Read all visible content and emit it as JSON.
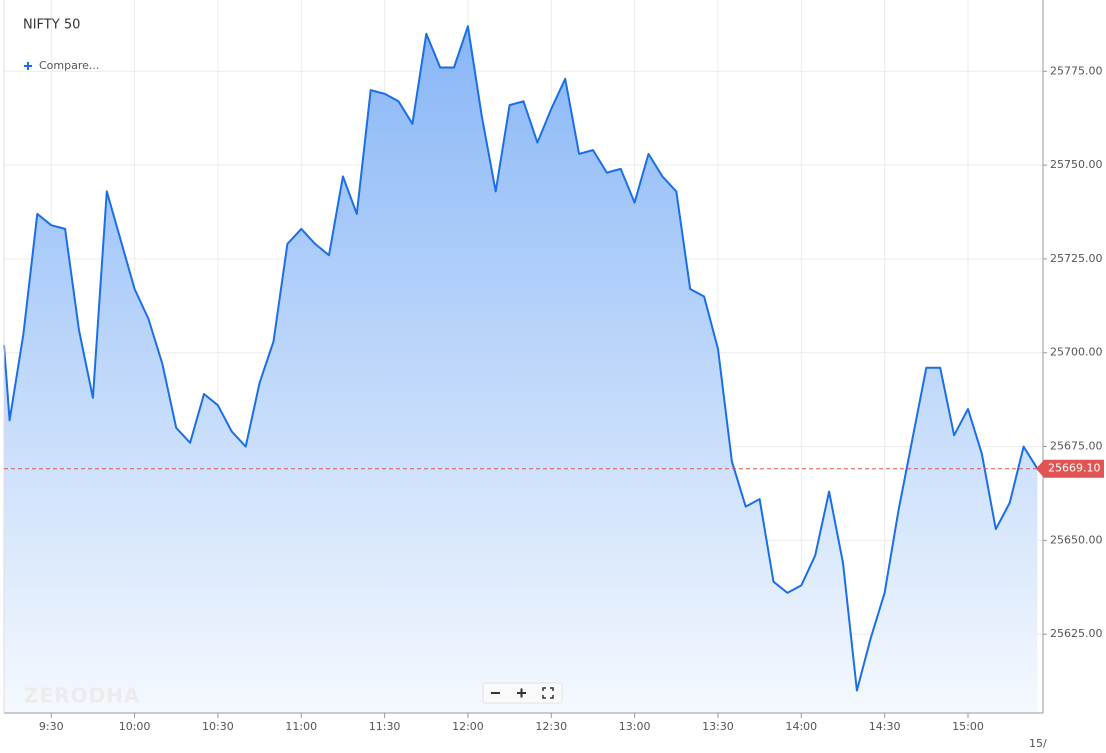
{
  "chart_data": {
    "type": "area",
    "title": "NIFTY 50",
    "compare_label": "Compare...",
    "watermark": "ZERODHA",
    "date_label": "15/",
    "color": "#1a6fe8",
    "x": [
      553,
      555,
      560,
      565,
      570,
      575,
      580,
      585,
      590,
      595,
      600,
      605,
      610,
      615,
      620,
      625,
      630,
      635,
      640,
      645,
      650,
      655,
      660,
      665,
      670,
      675,
      680,
      685,
      690,
      695,
      700,
      705,
      710,
      715,
      720,
      725,
      730,
      735,
      740,
      745,
      750,
      755,
      760,
      765,
      770,
      775,
      780,
      785,
      790,
      795,
      800,
      805,
      810,
      815,
      820,
      825,
      830,
      835,
      840,
      845,
      850,
      855,
      860,
      865,
      870,
      875,
      880,
      885,
      890,
      895,
      900,
      905,
      910,
      915,
      920,
      925
    ],
    "values": [
      25702,
      25682,
      25705,
      25737,
      25734,
      25733,
      25706,
      25688,
      25743,
      25730,
      25717,
      25709,
      25697,
      25680,
      25676,
      25689,
      25686,
      25679,
      25675,
      25692,
      25703,
      25729,
      25733,
      25729,
      25726,
      25747,
      25737,
      25770,
      25769,
      25767,
      25761,
      25785,
      25776,
      25776,
      25787,
      25763,
      25743,
      25766,
      25767,
      25756,
      25765,
      25773,
      25753,
      25754,
      25748,
      25749,
      25740,
      25753,
      25747,
      25743,
      25717,
      25715,
      25701,
      25671,
      25659,
      25661,
      25639,
      25636,
      25638,
      25646,
      25663,
      25644,
      25610,
      25624,
      25636,
      25658,
      25677,
      25696,
      25696,
      25678,
      25685,
      25673,
      25653,
      25660,
      25675,
      25669.1
    ],
    "xlim": [
      553,
      927
    ],
    "xticks": [
      {
        "value": 570,
        "label": "9:30"
      },
      {
        "value": 600,
        "label": "10:00"
      },
      {
        "value": 630,
        "label": "10:30"
      },
      {
        "value": 660,
        "label": "11:00"
      },
      {
        "value": 690,
        "label": "11:30"
      },
      {
        "value": 720,
        "label": "12:00"
      },
      {
        "value": 750,
        "label": "12:30"
      },
      {
        "value": 780,
        "label": "13:00"
      },
      {
        "value": 810,
        "label": "13:30"
      },
      {
        "value": 840,
        "label": "14:00"
      },
      {
        "value": 870,
        "label": "14:30"
      },
      {
        "value": 900,
        "label": "15:00"
      }
    ],
    "ylim": [
      25604,
      25794
    ],
    "yticks": [
      {
        "value": 25625,
        "label": "25625.00"
      },
      {
        "value": 25650,
        "label": "25650.00"
      },
      {
        "value": 25675,
        "label": "25675.00"
      },
      {
        "value": 25700,
        "label": "25700.00"
      },
      {
        "value": 25725,
        "label": "25725.00"
      },
      {
        "value": 25750,
        "label": "25750.00"
      },
      {
        "value": 25775,
        "label": "25775.00"
      }
    ],
    "last_price": {
      "value": 25669.1,
      "label": "25669.10"
    },
    "grid": true
  }
}
